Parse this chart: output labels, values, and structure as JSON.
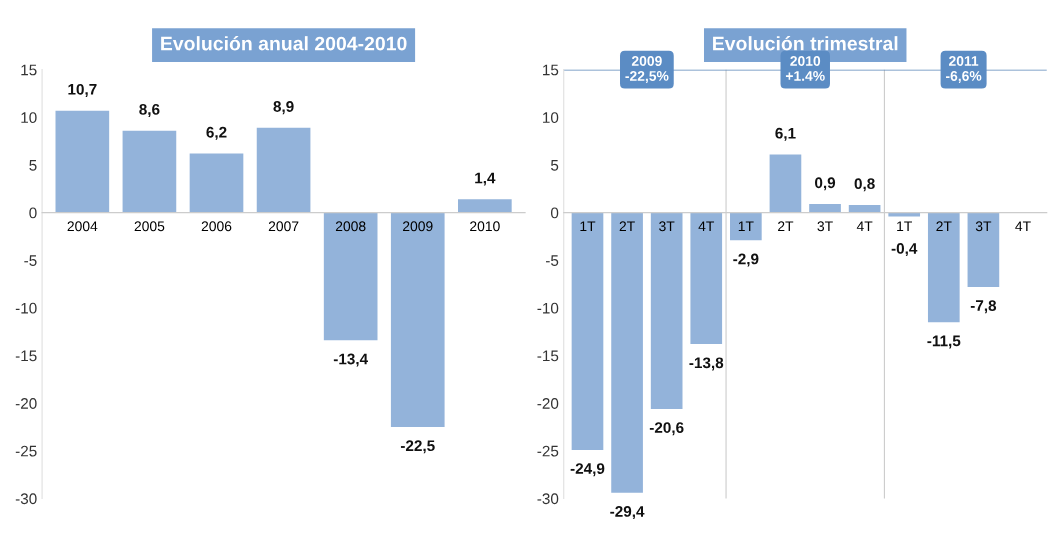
{
  "chart_data": [
    {
      "type": "bar",
      "title": "Evolución anual 2004-2010",
      "categories": [
        "2004",
        "2005",
        "2006",
        "2007",
        "2008",
        "2009",
        "2010"
      ],
      "values": [
        10.7,
        8.6,
        6.2,
        8.9,
        -13.4,
        -22.5,
        1.4
      ],
      "value_labels": [
        "10,7",
        "8,6",
        "6,2",
        "8,9",
        "-13,4",
        "-22,5",
        "1,4"
      ],
      "color": "#93b3da",
      "ylim": [
        -30,
        15
      ],
      "yticks": [
        -30,
        -25,
        -20,
        -15,
        -10,
        -5,
        0,
        5,
        10,
        15
      ],
      "grid": false,
      "legend": false
    },
    {
      "type": "bar",
      "title": "Evolución trimestral",
      "categories": [
        "1T",
        "2T",
        "3T",
        "4T",
        "1T",
        "2T",
        "3T",
        "4T",
        "1T",
        "2T",
        "3T",
        "4T"
      ],
      "values": [
        -24.9,
        -29.4,
        -20.6,
        -13.8,
        -2.9,
        6.1,
        0.9,
        0.8,
        -0.4,
        -11.5,
        -7.8,
        null
      ],
      "value_labels": [
        "-24,9",
        "-29,4",
        "-20,6",
        "-13,8",
        "-2,9",
        "6,1",
        "0,9",
        "0,8",
        "-0,4",
        "-11,5",
        "-7,8",
        null
      ],
      "color": "#93b3da",
      "ylim": [
        -30,
        15
      ],
      "yticks": [
        -30,
        -25,
        -20,
        -15,
        -10,
        -5,
        0,
        5,
        10,
        15
      ],
      "grid": false,
      "legend": false,
      "annotations": [
        "2009\n-22,5%",
        "2010\n+1.4%",
        "2011\n-6,6%"
      ],
      "ref_lines": [
        {
          "axis": "y",
          "value": 15,
          "label": null,
          "color": "#5a86b8"
        }
      ]
    }
  ]
}
